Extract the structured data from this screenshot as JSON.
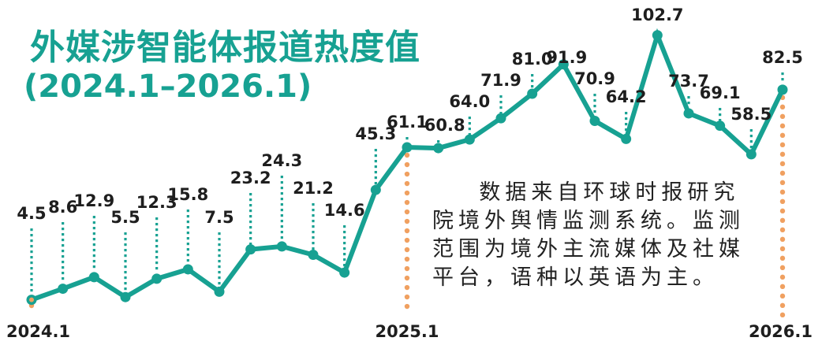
{
  "header": {
    "title": "外媒涉智能体报道热度值",
    "subtitle": "(2024.1–2026.1)"
  },
  "note": "数据来自环球时报研究院境外舆情监测系统。监测范围为境外主流媒体及社媒平台，语种以英语为主。",
  "colors": {
    "line": "#17a192",
    "marker_line": "#f0a060",
    "label": "#1e1e1e"
  },
  "chart_data": {
    "type": "line",
    "title": "外媒涉智能体报道热度值 (2024.1–2026.1)",
    "xlabel": "",
    "ylabel": "",
    "x": [
      "2024.1",
      "2024.2",
      "2024.3",
      "2024.4",
      "2024.5",
      "2024.6",
      "2024.7",
      "2024.8",
      "2024.9",
      "2024.10",
      "2024.11",
      "2024.12",
      "2025.1",
      "2025.2",
      "2025.3",
      "2025.4",
      "2025.5",
      "2025.6",
      "2025.7",
      "2025.8",
      "2025.9",
      "2025.10",
      "2025.11",
      "2025.12",
      "2026.1"
    ],
    "values": [
      4.5,
      8.6,
      12.9,
      5.5,
      12.3,
      15.8,
      7.5,
      23.2,
      24.3,
      21.2,
      14.6,
      45.3,
      61.1,
      60.8,
      64.0,
      71.9,
      81.0,
      91.9,
      70.9,
      64.2,
      102.7,
      73.7,
      69.1,
      58.5,
      82.5
    ],
    "tick_labels": [
      "2024.1",
      "2025.1",
      "2026.1"
    ],
    "grid": false,
    "legend": null,
    "annotations": [
      "数据来自环球时报研究院境外舆情监测系统。监测范围为境外主流媒体及社媒平台，语种以英语为主。"
    ]
  }
}
